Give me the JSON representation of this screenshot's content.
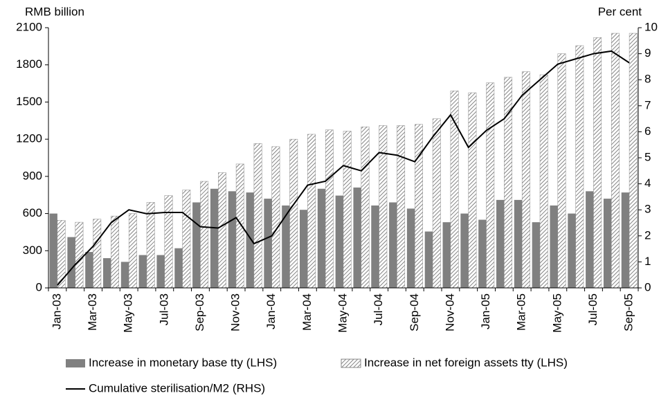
{
  "chart_data": {
    "type": "bar-line",
    "y_label": "RMB billion",
    "y2_label": "Per cent",
    "categories": [
      "Jan-03",
      null,
      "Mar-03",
      null,
      "May-03",
      null,
      "Jul-03",
      null,
      "Sep-03",
      null,
      "Nov-03",
      null,
      "Jan-04",
      null,
      "Mar-04",
      null,
      "May-04",
      null,
      "Jul-04",
      null,
      "Sep-04",
      null,
      "Nov-04",
      null,
      "Jan-05",
      null,
      "Mar-05",
      null,
      "May-05",
      null,
      "Jul-05",
      null,
      "Sep-05"
    ],
    "ylim": [
      0,
      2100
    ],
    "yticks": [
      0,
      300,
      600,
      900,
      1200,
      1500,
      1800,
      2100
    ],
    "y2lim": [
      0,
      10
    ],
    "y2ticks": [
      0,
      1,
      2,
      3,
      4,
      5,
      6,
      7,
      8,
      9,
      10
    ],
    "series": [
      {
        "name": "Increase in monetary base tty (LHS)",
        "type": "bar",
        "color": "#808080",
        "values": [
          600,
          410,
          290,
          240,
          210,
          265,
          265,
          320,
          690,
          800,
          780,
          770,
          720,
          665,
          630,
          800,
          745,
          810,
          665,
          690,
          640,
          455,
          530,
          600,
          550,
          710,
          710,
          530,
          665,
          600,
          780,
          720,
          770
        ]
      },
      {
        "name": "Increase in net foreign assets tty (LHS)",
        "type": "bar",
        "color": "#808080",
        "pattern": "diagonal-hatch",
        "values": [
          545,
          530,
          555,
          580,
          600,
          690,
          745,
          790,
          860,
          930,
          1000,
          1165,
          1140,
          1200,
          1240,
          1275,
          1265,
          1300,
          1310,
          1310,
          1320,
          1365,
          1590,
          1575,
          1655,
          1700,
          1745,
          1720,
          1890,
          1955,
          2020,
          2055,
          2055
        ]
      },
      {
        "name": "Cumulative sterilisation/M2 (RHS)",
        "type": "line",
        "axis": "y2",
        "color": "#000000",
        "values": [
          0.1,
          0.9,
          1.6,
          2.5,
          3.0,
          2.85,
          2.9,
          2.9,
          2.35,
          2.3,
          2.7,
          1.7,
          2.0,
          3.0,
          3.95,
          4.1,
          4.7,
          4.5,
          5.2,
          5.1,
          4.85,
          5.8,
          6.65,
          5.4,
          6.05,
          6.5,
          7.4,
          8.0,
          8.6,
          8.8,
          9.0,
          9.1,
          8.65
        ]
      }
    ]
  }
}
